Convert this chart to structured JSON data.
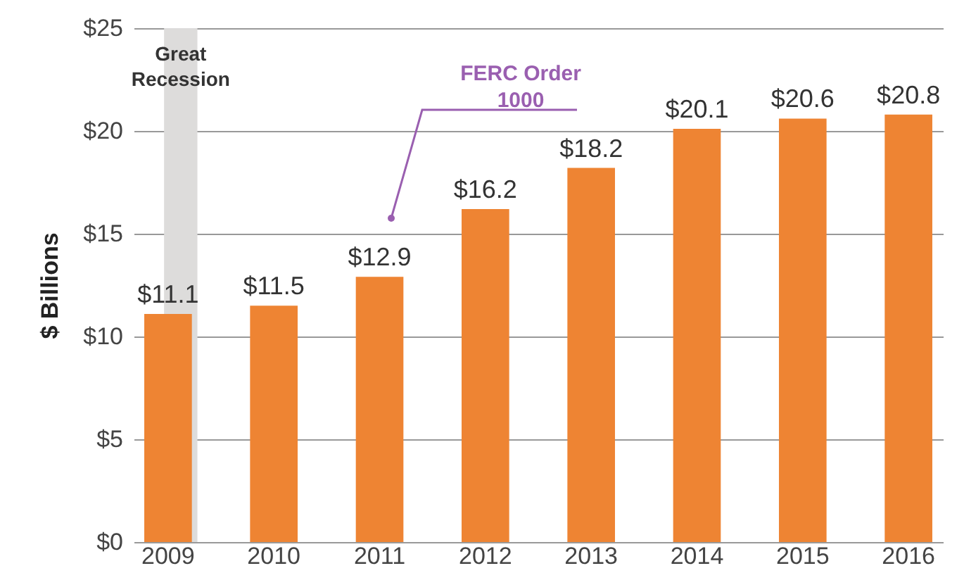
{
  "chart_data": {
    "type": "bar",
    "ylabel": "$ Billions",
    "categories": [
      "2009",
      "2010",
      "2011",
      "2012",
      "2013",
      "2014",
      "2015",
      "2016"
    ],
    "values": [
      11.1,
      11.5,
      12.9,
      16.2,
      18.2,
      20.1,
      20.6,
      20.8
    ],
    "value_labels": [
      "$11.1",
      "$11.5",
      "$12.9",
      "$16.2",
      "$18.2",
      "$20.1",
      "$20.6",
      "$20.8"
    ],
    "color": "#ee8433",
    "ylim": [
      0,
      25
    ],
    "yticks": [
      {
        "value": 0,
        "label": "$0"
      },
      {
        "value": 5,
        "label": "$5"
      },
      {
        "value": 10,
        "label": "$10"
      },
      {
        "value": 15,
        "label": "$15"
      },
      {
        "value": 20,
        "label": "$20"
      },
      {
        "value": 25,
        "label": "$25"
      }
    ],
    "grid": "y",
    "bands": [
      {
        "axis": "x",
        "from": "2009",
        "to": "2009",
        "label": "Great Recession",
        "color": "#dddcdb"
      }
    ],
    "annotations": [
      "FERC Order\n1000"
    ]
  }
}
